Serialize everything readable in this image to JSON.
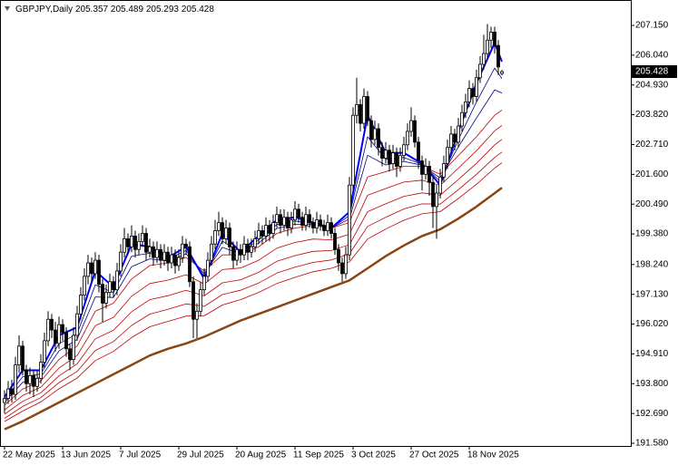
{
  "chart_data": {
    "type": "candlestick",
    "title": "GBPJPY,Daily",
    "up_color": "#ffffff",
    "down_color": "#000000",
    "wick_color": "#000000",
    "xlim": [
      -1,
      172.5
    ],
    "ylim": [
      191.479,
      208.096
    ],
    "xticks": [
      {
        "value": 0,
        "label": "22 May 2025"
      },
      {
        "value": 16,
        "label": "13 Jun 2025"
      },
      {
        "value": 32,
        "label": "7 Jul 2025"
      },
      {
        "value": 48,
        "label": "29 Jul 2025"
      },
      {
        "value": 64,
        "label": "20 Aug 2025"
      },
      {
        "value": 80,
        "label": "11 Sep 2025"
      },
      {
        "value": 96,
        "label": "3 Oct 2025"
      },
      {
        "value": 112,
        "label": "27 Oct 2025"
      },
      {
        "value": 128,
        "label": "18 Nov 2025"
      }
    ],
    "yticks": [
      {
        "value": 207.15,
        "label": "207.150"
      },
      {
        "value": 206.04,
        "label": "206.040"
      },
      {
        "value": 204.93,
        "label": "204.930"
      },
      {
        "value": 203.82,
        "label": "203.820"
      },
      {
        "value": 202.71,
        "label": "202.710"
      },
      {
        "value": 201.6,
        "label": "201.600"
      },
      {
        "value": 200.49,
        "label": "200.490"
      },
      {
        "value": 199.38,
        "label": "199.380"
      },
      {
        "value": 198.24,
        "label": "198.240"
      },
      {
        "value": 197.13,
        "label": "197.130"
      },
      {
        "value": 196.02,
        "label": "196.020"
      },
      {
        "value": 194.91,
        "label": "194.910"
      },
      {
        "value": 193.8,
        "label": "193.800"
      },
      {
        "value": 192.69,
        "label": "192.690"
      },
      {
        "value": 191.58,
        "label": "191.580"
      }
    ],
    "candles": [
      [
        193.1,
        193.55,
        192.7,
        193.25
      ],
      [
        193.25,
        193.9,
        193.05,
        193.6
      ],
      [
        193.6,
        193.95,
        193.1,
        193.4
      ],
      [
        193.4,
        194.8,
        193.2,
        194.5
      ],
      [
        194.5,
        195.6,
        194.2,
        195.2
      ],
      [
        195.2,
        195.4,
        194.1,
        194.3
      ],
      [
        194.3,
        194.5,
        193.5,
        193.8
      ],
      [
        193.8,
        194.4,
        193.4,
        194.1
      ],
      [
        194.1,
        194.3,
        193.3,
        193.7
      ],
      [
        193.7,
        194.3,
        193.5,
        194.0
      ],
      [
        194.0,
        194.9,
        193.8,
        194.6
      ],
      [
        194.6,
        195.7,
        194.4,
        195.4
      ],
      [
        195.4,
        196.5,
        195.2,
        196.2
      ],
      [
        196.2,
        196.4,
        195.5,
        195.8
      ],
      [
        195.8,
        196.1,
        195.0,
        195.3
      ],
      [
        195.3,
        196.3,
        195.1,
        196.0
      ],
      [
        196.0,
        196.2,
        195.4,
        195.7
      ],
      [
        195.7,
        195.9,
        194.8,
        195.1
      ],
      [
        195.1,
        195.3,
        194.3,
        194.7
      ],
      [
        194.7,
        195.9,
        194.5,
        195.6
      ],
      [
        195.6,
        196.7,
        195.4,
        196.4
      ],
      [
        196.4,
        197.4,
        196.2,
        197.1
      ],
      [
        197.1,
        198.1,
        196.9,
        197.8
      ],
      [
        197.8,
        198.6,
        197.5,
        198.3
      ],
      [
        198.3,
        198.5,
        197.6,
        197.9
      ],
      [
        197.9,
        198.7,
        197.7,
        198.4
      ],
      [
        198.4,
        198.6,
        197.2,
        197.5
      ],
      [
        197.5,
        197.7,
        196.1,
        196.8
      ],
      [
        196.8,
        197.5,
        196.6,
        197.2
      ],
      [
        197.2,
        197.9,
        197.0,
        197.6
      ],
      [
        197.6,
        197.8,
        197.0,
        197.3
      ],
      [
        197.3,
        198.3,
        197.1,
        198.0
      ],
      [
        198.0,
        199.0,
        197.8,
        198.7
      ],
      [
        198.7,
        199.6,
        198.5,
        199.2
      ],
      [
        199.2,
        199.4,
        198.6,
        198.9
      ],
      [
        198.9,
        199.7,
        198.7,
        199.3
      ],
      [
        199.3,
        199.5,
        198.5,
        198.8
      ],
      [
        198.8,
        199.4,
        198.6,
        199.1
      ],
      [
        199.1,
        199.7,
        198.9,
        199.4
      ],
      [
        199.4,
        199.6,
        198.4,
        198.7
      ],
      [
        198.7,
        199.2,
        198.5,
        198.9
      ],
      [
        198.9,
        199.1,
        198.2,
        198.5
      ],
      [
        198.5,
        199.1,
        198.3,
        198.8
      ],
      [
        198.8,
        199.0,
        198.1,
        198.4
      ],
      [
        198.4,
        199.0,
        198.2,
        198.7
      ],
      [
        198.7,
        198.9,
        198.0,
        198.3
      ],
      [
        198.3,
        198.9,
        198.1,
        198.6
      ],
      [
        198.6,
        198.8,
        197.9,
        198.2
      ],
      [
        198.2,
        198.8,
        198.0,
        198.5
      ],
      [
        198.5,
        199.3,
        198.3,
        199.0
      ],
      [
        199.0,
        199.2,
        198.6,
        198.9
      ],
      [
        198.9,
        199.1,
        197.4,
        197.6
      ],
      [
        197.6,
        197.8,
        195.5,
        196.2
      ],
      [
        196.2,
        196.8,
        195.5,
        196.5
      ],
      [
        196.5,
        197.6,
        196.3,
        197.3
      ],
      [
        197.3,
        198.1,
        197.1,
        197.8
      ],
      [
        197.8,
        198.7,
        197.6,
        198.4
      ],
      [
        198.4,
        199.3,
        198.2,
        199.0
      ],
      [
        199.0,
        199.9,
        198.8,
        199.5
      ],
      [
        199.5,
        200.2,
        199.3,
        199.8
      ],
      [
        199.8,
        200.0,
        199.0,
        199.2
      ],
      [
        199.2,
        199.9,
        199.0,
        199.6
      ],
      [
        199.6,
        199.8,
        198.6,
        198.9
      ],
      [
        198.9,
        199.1,
        198.1,
        198.4
      ],
      [
        198.4,
        199.1,
        198.2,
        198.8
      ],
      [
        198.8,
        199.0,
        198.3,
        198.6
      ],
      [
        198.6,
        199.3,
        198.4,
        199.0
      ],
      [
        199.0,
        199.2,
        198.4,
        198.7
      ],
      [
        198.7,
        199.2,
        198.5,
        198.9
      ],
      [
        198.9,
        199.5,
        198.7,
        199.2
      ],
      [
        199.2,
        199.8,
        199.0,
        199.5
      ],
      [
        199.5,
        199.7,
        199.0,
        199.3
      ],
      [
        199.3,
        200.0,
        199.1,
        199.7
      ],
      [
        199.7,
        199.9,
        199.1,
        199.4
      ],
      [
        199.4,
        200.1,
        199.2,
        199.8
      ],
      [
        199.8,
        200.4,
        199.6,
        200.1
      ],
      [
        200.1,
        200.3,
        199.4,
        199.7
      ],
      [
        199.7,
        200.3,
        199.5,
        200.0
      ],
      [
        200.0,
        200.2,
        199.3,
        199.6
      ],
      [
        199.6,
        200.2,
        199.4,
        199.9
      ],
      [
        199.9,
        200.6,
        199.7,
        200.3
      ],
      [
        200.3,
        200.5,
        199.8,
        200.0
      ],
      [
        200.0,
        200.2,
        199.5,
        199.7
      ],
      [
        199.7,
        200.4,
        199.5,
        200.1
      ],
      [
        200.1,
        200.3,
        199.6,
        199.8
      ],
      [
        199.8,
        200.0,
        199.4,
        199.6
      ],
      [
        199.6,
        200.2,
        199.4,
        199.9
      ],
      [
        199.9,
        200.1,
        199.5,
        199.7
      ],
      [
        199.7,
        199.9,
        199.3,
        199.5
      ],
      [
        199.5,
        200.1,
        199.3,
        199.8
      ],
      [
        199.8,
        200.0,
        199.2,
        199.4
      ],
      [
        199.4,
        199.6,
        198.6,
        198.8
      ],
      [
        198.8,
        199.0,
        198.0,
        198.3
      ],
      [
        198.3,
        198.5,
        197.6,
        197.9
      ],
      [
        197.9,
        198.9,
        197.7,
        198.6
      ],
      [
        198.6,
        201.5,
        198.4,
        201.2
      ],
      [
        201.2,
        204.1,
        201.0,
        203.8
      ],
      [
        203.8,
        205.2,
        203.5,
        204.2
      ],
      [
        204.2,
        204.4,
        203.2,
        203.5
      ],
      [
        203.5,
        204.8,
        203.3,
        204.5
      ],
      [
        204.5,
        204.7,
        203.4,
        203.6
      ],
      [
        203.6,
        203.8,
        202.6,
        202.9
      ],
      [
        202.9,
        203.6,
        202.7,
        203.3
      ],
      [
        203.3,
        203.5,
        202.3,
        202.6
      ],
      [
        202.6,
        202.8,
        201.9,
        202.2
      ],
      [
        202.2,
        202.8,
        202.0,
        202.5
      ],
      [
        202.5,
        202.7,
        201.7,
        202.0
      ],
      [
        202.0,
        202.7,
        201.8,
        202.4
      ],
      [
        202.4,
        202.6,
        201.5,
        201.9
      ],
      [
        201.9,
        202.6,
        201.7,
        202.3
      ],
      [
        202.3,
        203.0,
        202.1,
        202.7
      ],
      [
        202.7,
        203.5,
        202.5,
        203.2
      ],
      [
        203.2,
        204.1,
        203.0,
        203.6
      ],
      [
        203.6,
        203.8,
        202.6,
        202.8
      ],
      [
        202.8,
        203.0,
        201.8,
        202.1
      ],
      [
        202.1,
        202.3,
        201.0,
        201.6
      ],
      [
        201.6,
        202.2,
        201.4,
        201.9
      ],
      [
        201.9,
        202.1,
        200.8,
        201.3
      ],
      [
        201.3,
        201.5,
        199.6,
        200.4
      ],
      [
        200.4,
        201.2,
        199.2,
        200.9
      ],
      [
        200.9,
        201.8,
        200.7,
        201.5
      ],
      [
        201.5,
        202.3,
        201.3,
        202.0
      ],
      [
        202.0,
        202.9,
        201.8,
        202.6
      ],
      [
        202.6,
        203.4,
        202.4,
        203.1
      ],
      [
        203.1,
        203.3,
        202.5,
        202.8
      ],
      [
        202.8,
        203.7,
        202.6,
        203.4
      ],
      [
        203.4,
        204.2,
        203.2,
        203.9
      ],
      [
        203.9,
        204.6,
        203.7,
        204.3
      ],
      [
        204.3,
        205.1,
        204.1,
        204.8
      ],
      [
        204.8,
        205.0,
        204.2,
        204.5
      ],
      [
        204.5,
        205.5,
        204.3,
        205.2
      ],
      [
        205.2,
        206.0,
        205.0,
        205.7
      ],
      [
        205.7,
        206.8,
        205.5,
        206.1
      ],
      [
        206.1,
        207.2,
        205.9,
        206.6
      ],
      [
        206.6,
        207.1,
        206.3,
        206.9
      ],
      [
        206.9,
        207.1,
        206.1,
        206.4
      ],
      [
        206.4,
        206.6,
        205.3,
        205.6
      ],
      [
        205.357,
        205.489,
        205.293,
        205.428
      ]
    ],
    "line_x": [
      0,
      5,
      10,
      15,
      20,
      25,
      30,
      35,
      40,
      45,
      50,
      55,
      60,
      65,
      70,
      75,
      80,
      85,
      90,
      95,
      100,
      105,
      110,
      115,
      120,
      125,
      130,
      135,
      137
    ],
    "lines": [
      {
        "color": "#8b4513",
        "width": 2.5,
        "values": [
          192.1,
          192.4,
          192.75,
          193.1,
          193.45,
          193.8,
          194.15,
          194.5,
          194.85,
          195.1,
          195.3,
          195.55,
          195.85,
          196.15,
          196.4,
          196.65,
          196.9,
          197.15,
          197.4,
          197.65,
          198.1,
          198.55,
          198.95,
          199.3,
          199.55,
          199.95,
          200.4,
          200.9,
          201.1
        ]
      },
      {
        "color": "#c00000",
        "width": 0.8,
        "values": [
          192.39,
          192.78,
          193.12,
          193.61,
          194.01,
          194.66,
          195.0,
          195.52,
          195.92,
          196.12,
          196.32,
          196.33,
          196.73,
          196.93,
          197.2,
          197.53,
          197.76,
          197.97,
          198.1,
          198.34,
          199.19,
          199.56,
          199.89,
          200.13,
          200.21,
          200.7,
          201.23,
          201.83,
          202.03
        ]
      },
      {
        "color": "#c00000",
        "width": 0.8,
        "values": [
          192.51,
          192.95,
          193.28,
          193.84,
          194.26,
          195.04,
          195.37,
          195.97,
          196.39,
          196.57,
          196.77,
          196.68,
          197.12,
          197.28,
          197.55,
          197.92,
          198.14,
          198.32,
          198.41,
          198.64,
          199.66,
          200.0,
          200.31,
          200.5,
          200.49,
          201.03,
          201.6,
          202.23,
          202.43
        ]
      },
      {
        "color": "#c00000",
        "width": 0.8,
        "values": [
          192.66,
          193.14,
          193.46,
          194.09,
          194.54,
          195.47,
          195.79,
          196.48,
          196.93,
          197.08,
          197.28,
          197.07,
          197.56,
          197.67,
          197.95,
          198.36,
          198.57,
          198.73,
          198.76,
          198.98,
          200.21,
          200.5,
          200.78,
          200.91,
          200.82,
          201.41,
          202.01,
          202.7,
          202.9
        ]
      },
      {
        "color": "#c00000",
        "width": 0.8,
        "values": [
          192.82,
          193.36,
          193.67,
          194.38,
          194.85,
          195.96,
          196.27,
          197.06,
          197.53,
          197.66,
          197.86,
          197.51,
          198.05,
          198.11,
          198.4,
          198.85,
          199.06,
          199.19,
          199.16,
          199.37,
          200.82,
          201.07,
          201.31,
          201.38,
          201.19,
          201.83,
          202.48,
          203.22,
          203.42
        ]
      },
      {
        "color": "#c00000",
        "width": 0.8,
        "values": [
          193.0,
          193.6,
          193.9,
          194.7,
          195.2,
          196.5,
          196.8,
          197.7,
          198.2,
          198.3,
          198.5,
          198.0,
          198.6,
          198.6,
          198.9,
          199.4,
          199.6,
          199.7,
          199.6,
          199.8,
          201.5,
          201.7,
          201.9,
          201.9,
          201.6,
          202.3,
          203.0,
          203.8,
          204.0
        ]
      },
      {
        "color": "#000080",
        "width": 0.8,
        "values": [
          193.11,
          193.85,
          194.04,
          195.02,
          195.45,
          197.03,
          197.01,
          198.16,
          198.45,
          198.37,
          198.64,
          197.9,
          198.88,
          198.64,
          199.04,
          199.58,
          199.74,
          199.74,
          199.6,
          199.94,
          202.31,
          201.95,
          202.08,
          201.94,
          201.46,
          202.62,
          203.7,
          204.75,
          204.63
        ]
      },
      {
        "color": "#000080",
        "width": 0.8,
        "values": [
          193.2,
          194.06,
          194.16,
          195.29,
          195.66,
          197.48,
          197.19,
          198.55,
          198.66,
          198.43,
          198.76,
          197.81,
          199.12,
          198.67,
          199.16,
          199.73,
          199.86,
          199.77,
          199.6,
          200.06,
          203.0,
          202.16,
          202.23,
          201.97,
          201.34,
          202.89,
          204.3,
          205.56,
          205.17
        ]
      },
      {
        "color": "#0000ff",
        "width": 2,
        "values": [
          193.3,
          194.3,
          194.3,
          195.6,
          195.9,
          198.0,
          197.4,
          199.0,
          198.9,
          198.5,
          198.9,
          197.7,
          199.4,
          198.7,
          199.3,
          199.9,
          200.0,
          199.8,
          199.6,
          200.2,
          203.8,
          202.4,
          202.4,
          202.0,
          201.2,
          203.2,
          205.0,
          206.5,
          205.8
        ]
      }
    ]
  }
}
